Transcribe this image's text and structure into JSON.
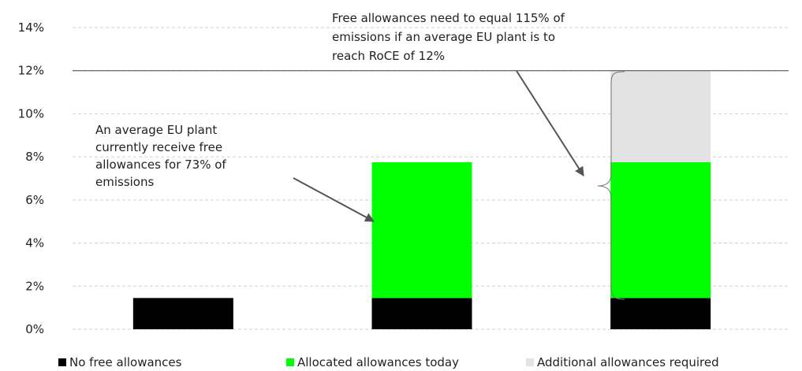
{
  "chart_data": {
    "type": "bar",
    "stacked": true,
    "categories": [
      "",
      "",
      ""
    ],
    "ylim": [
      0,
      14
    ],
    "yticks": [
      "0%",
      "2%",
      "4%",
      "6%",
      "8%",
      "10%",
      "12%",
      "14%"
    ],
    "grid": true,
    "target_line": 12,
    "series": [
      {
        "name": "No free allowances",
        "color": "#000000",
        "values": [
          1.45,
          1.45,
          1.45
        ]
      },
      {
        "name": "Allocated allowances today",
        "color": "#00ff00",
        "values": [
          0,
          6.3,
          6.3
        ]
      },
      {
        "name": "Additional allowances required",
        "color": "#e3e3e3",
        "values": [
          0,
          0,
          4.25
        ]
      }
    ],
    "annotations": [
      {
        "lines": [
          "An average EU plant",
          "currently receive free",
          "allowances for 73% of",
          "emissions"
        ]
      },
      {
        "lines": [
          "Free allowances need to equal 115% of",
          "emissions if an average EU plant is to",
          "reach RoCE of 12%"
        ]
      }
    ],
    "legend_position": "bottom"
  }
}
